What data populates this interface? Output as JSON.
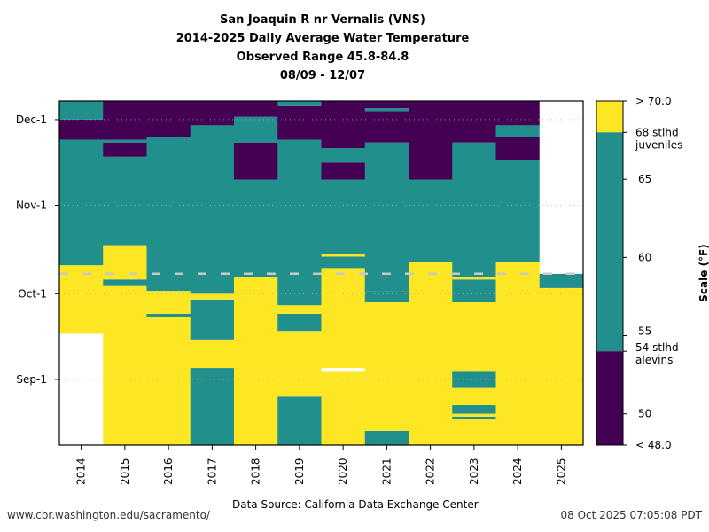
{
  "header": {
    "line1": "San Joaquin R nr Vernalis (VNS)",
    "line2": "2014-2025 Daily Average Water Temperature",
    "line3": "Observed Range 45.8-84.8",
    "line4": "08/09 - 12/07"
  },
  "footer": {
    "url": "www.cbr.washington.edu/sacramento/",
    "source": "Data Source: California Data Exchange Center",
    "timestamp": "08 Oct 2025 07:05:08 PDT"
  },
  "chart_data": {
    "type": "heatmap",
    "title": "San Joaquin R nr Vernalis (VNS) 2014-2025 Daily Average Water Temperature",
    "xlabel": "",
    "ylabel": "",
    "x_categories": [
      "2014",
      "2015",
      "2016",
      "2017",
      "2018",
      "2019",
      "2020",
      "2021",
      "2022",
      "2023",
      "2024",
      "2025"
    ],
    "y_range_days": [
      0,
      120
    ],
    "y_origin_date": "08/09",
    "y_ticks": [
      {
        "label": "Sep-1",
        "day": 23
      },
      {
        "label": "Oct-1",
        "day": 53
      },
      {
        "label": "Nov-1",
        "day": 84
      },
      {
        "label": "Dec-1",
        "day": 114
      }
    ],
    "reference_line_day": 60,
    "colorbar": {
      "label": "Scale (°F)",
      "range": [
        48,
        70
      ],
      "ticks": [
        {
          "value": 70,
          "label": "> 70.0"
        },
        {
          "value": 68,
          "label": "68 stlhd\njuveniles"
        },
        {
          "value": 65,
          "label": "65"
        },
        {
          "value": 60,
          "label": "60"
        },
        {
          "value": 55,
          "label": "55"
        },
        {
          "value": 54,
          "label": "54 stlhd\nalevins"
        },
        {
          "value": 50,
          "label": "50"
        },
        {
          "value": 48,
          "label": "< 48.0"
        }
      ],
      "bins": [
        {
          "name": "high",
          "from": 68,
          "to": 70,
          "color": "#fde725"
        },
        {
          "name": "mid",
          "from": 54,
          "to": 68,
          "color": "#21908d"
        },
        {
          "name": "low",
          "from": 48,
          "to": 54,
          "color": "#440154"
        }
      ]
    },
    "colors": {
      "high": "#fde725",
      "mid": "#21908d",
      "low": "#440154",
      "none": "#ffffff"
    },
    "series": [
      {
        "name": "2014",
        "segments": [
          [
            0,
            39,
            "none"
          ],
          [
            39,
            63,
            "high"
          ],
          [
            63,
            107,
            "mid"
          ],
          [
            107,
            114,
            "low"
          ],
          [
            114,
            120,
            "mid"
          ]
        ]
      },
      {
        "name": "2015",
        "segments": [
          [
            0,
            56,
            "high"
          ],
          [
            56,
            58,
            "mid"
          ],
          [
            58,
            70,
            "high"
          ],
          [
            70,
            101,
            "mid"
          ],
          [
            101,
            106,
            "low"
          ],
          [
            106,
            107,
            "mid"
          ],
          [
            107,
            120,
            "low"
          ]
        ]
      },
      {
        "name": "2016",
        "segments": [
          [
            0,
            45,
            "high"
          ],
          [
            45,
            46,
            "mid"
          ],
          [
            46,
            54,
            "high"
          ],
          [
            54,
            108,
            "mid"
          ],
          [
            108,
            120,
            "low"
          ]
        ]
      },
      {
        "name": "2017",
        "segments": [
          [
            0,
            27,
            "mid"
          ],
          [
            27,
            37,
            "high"
          ],
          [
            37,
            51,
            "mid"
          ],
          [
            51,
            53,
            "high"
          ],
          [
            53,
            112,
            "mid"
          ],
          [
            112,
            120,
            "low"
          ]
        ]
      },
      {
        "name": "2018",
        "segments": [
          [
            0,
            59,
            "high"
          ],
          [
            59,
            93,
            "mid"
          ],
          [
            93,
            106,
            "low"
          ],
          [
            106,
            115,
            "mid"
          ],
          [
            115,
            120,
            "low"
          ]
        ]
      },
      {
        "name": "2019",
        "segments": [
          [
            0,
            17,
            "mid"
          ],
          [
            17,
            40,
            "high"
          ],
          [
            40,
            46,
            "mid"
          ],
          [
            46,
            49,
            "high"
          ],
          [
            49,
            107,
            "mid"
          ],
          [
            107,
            119,
            "low"
          ],
          [
            119,
            120,
            "mid"
          ]
        ]
      },
      {
        "name": "2020",
        "segments": [
          [
            0,
            26,
            "high"
          ],
          [
            26,
            27,
            "none"
          ],
          [
            27,
            62,
            "high"
          ],
          [
            62,
            66,
            "mid"
          ],
          [
            66,
            67,
            "high"
          ],
          [
            67,
            93,
            "mid"
          ],
          [
            93,
            99,
            "low"
          ],
          [
            99,
            104,
            "mid"
          ],
          [
            104,
            120,
            "low"
          ]
        ]
      },
      {
        "name": "2021",
        "segments": [
          [
            0,
            5,
            "mid"
          ],
          [
            5,
            50,
            "high"
          ],
          [
            50,
            54,
            "mid"
          ],
          [
            54,
            106,
            "mid"
          ],
          [
            106,
            117,
            "low"
          ],
          [
            117,
            118,
            "mid"
          ],
          [
            118,
            120,
            "low"
          ]
        ]
      },
      {
        "name": "2022",
        "segments": [
          [
            0,
            64,
            "high"
          ],
          [
            64,
            93,
            "mid"
          ],
          [
            93,
            120,
            "low"
          ]
        ]
      },
      {
        "name": "2023",
        "segments": [
          [
            0,
            9,
            "high"
          ],
          [
            9,
            10,
            "mid"
          ],
          [
            10,
            11,
            "high"
          ],
          [
            11,
            14,
            "mid"
          ],
          [
            14,
            20,
            "high"
          ],
          [
            20,
            26,
            "mid"
          ],
          [
            26,
            50,
            "high"
          ],
          [
            50,
            58,
            "mid"
          ],
          [
            58,
            59,
            "high"
          ],
          [
            59,
            106,
            "mid"
          ],
          [
            106,
            120,
            "low"
          ]
        ]
      },
      {
        "name": "2024",
        "segments": [
          [
            0,
            64,
            "high"
          ],
          [
            64,
            100,
            "mid"
          ],
          [
            100,
            108,
            "low"
          ],
          [
            108,
            112,
            "mid"
          ],
          [
            112,
            120,
            "low"
          ]
        ]
      },
      {
        "name": "2025",
        "segments": [
          [
            0,
            55,
            "high"
          ],
          [
            55,
            60,
            "mid"
          ],
          [
            60,
            120,
            "none"
          ]
        ]
      }
    ]
  }
}
